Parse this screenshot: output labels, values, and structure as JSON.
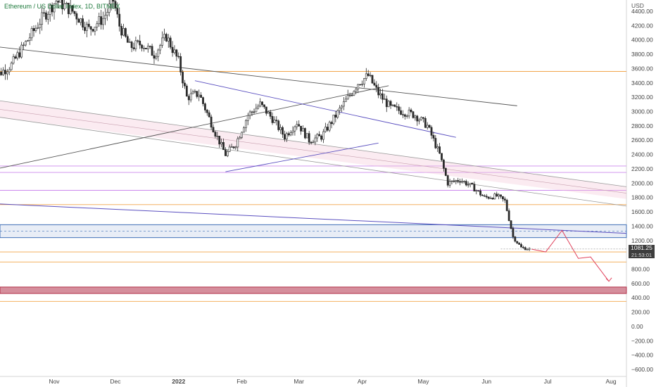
{
  "legend": {
    "title": "Ethereum / US Dollar Index, 1D, BITMEX"
  },
  "axis": {
    "unit": "USD"
  },
  "price_badge": {
    "price": "1081.25",
    "countdown": "21:53:01"
  },
  "colors": {
    "candle_body": "#2b2b2b",
    "candle_hollow": "#ffffff",
    "orange_level": "#f2a54a",
    "purple_level": "#cc88ee",
    "blue_zone": "#3f6fb5",
    "red_zone": "#b2324b",
    "projection": "#e0405a",
    "trend_dark": "#555555",
    "trend_purple": "#5a4fc0"
  },
  "chart_data": {
    "type": "candlestick",
    "title": "Ethereum / US Dollar Index, 1D, BITMEX",
    "y_unit": "USD",
    "y_range": [
      -700,
      4600
    ],
    "y_ticks": [
      "4400.00",
      "4200.00",
      "4000.00",
      "3800.00",
      "3600.00",
      "3400.00",
      "3200.00",
      "3000.00",
      "2800.00",
      "2600.00",
      "2400.00",
      "2200.00",
      "2000.00",
      "1800.00",
      "1600.00",
      "1400.00",
      "1200.00",
      "1000.00",
      "800.00",
      "600.00",
      "400.00",
      "200.00",
      "0.00",
      "−200.00",
      "−400.00",
      "−600.00"
    ],
    "y_tick_values": [
      4400,
      4200,
      4000,
      3800,
      3600,
      3400,
      3200,
      3000,
      2800,
      2600,
      2400,
      2200,
      2000,
      1800,
      1600,
      1400,
      1200,
      1000,
      800,
      600,
      400,
      200,
      0,
      -200,
      -400,
      -600
    ],
    "x_labels": [
      "Nov",
      "Dec",
      "2022",
      "Feb",
      "Mar",
      "Apr",
      "May",
      "Jun",
      "Jul",
      "Aug"
    ],
    "x_label_days": [
      31,
      61,
      92,
      123,
      151,
      182,
      212,
      243,
      273,
      304
    ],
    "x_range_days": [
      0,
      320
    ],
    "horizontal_levels": [
      {
        "price": 3560,
        "color": "orange"
      },
      {
        "price": 2240,
        "color": "purple"
      },
      {
        "price": 2150,
        "color": "purple"
      },
      {
        "price": 1900,
        "color": "purple"
      },
      {
        "price": 1700,
        "color": "orange"
      },
      {
        "price": 1040,
        "color": "orange"
      },
      {
        "price": 900,
        "color": "orange"
      },
      {
        "price": 350,
        "color": "orange"
      }
    ],
    "zones": [
      {
        "from": 1240,
        "to": 1420,
        "color": "blue"
      },
      {
        "from": 460,
        "to": 550,
        "color": "red"
      }
    ],
    "candles_keypoints": [
      {
        "day": 0,
        "close": 3450
      },
      {
        "day": 10,
        "close": 3650
      },
      {
        "day": 18,
        "close": 4000
      },
      {
        "day": 25,
        "close": 4300
      },
      {
        "day": 32,
        "close": 4550
      },
      {
        "day": 40,
        "close": 4400
      },
      {
        "day": 48,
        "close": 4150
      },
      {
        "day": 55,
        "close": 4300
      },
      {
        "day": 60,
        "close": 4550
      },
      {
        "day": 63,
        "close": 4200
      },
      {
        "day": 68,
        "close": 3900
      },
      {
        "day": 74,
        "close": 3950
      },
      {
        "day": 80,
        "close": 3800
      },
      {
        "day": 86,
        "close": 4050
      },
      {
        "day": 92,
        "close": 3700
      },
      {
        "day": 96,
        "close": 3200
      },
      {
        "day": 102,
        "close": 3250
      },
      {
        "day": 110,
        "close": 2700
      },
      {
        "day": 115,
        "close": 2400
      },
      {
        "day": 120,
        "close": 2550
      },
      {
        "day": 126,
        "close": 2950
      },
      {
        "day": 132,
        "close": 3100
      },
      {
        "day": 138,
        "close": 2900
      },
      {
        "day": 144,
        "close": 2650
      },
      {
        "day": 150,
        "close": 2850
      },
      {
        "day": 156,
        "close": 2600
      },
      {
        "day": 162,
        "close": 2650
      },
      {
        "day": 168,
        "close": 2900
      },
      {
        "day": 174,
        "close": 3150
      },
      {
        "day": 180,
        "close": 3400
      },
      {
        "day": 185,
        "close": 3500
      },
      {
        "day": 190,
        "close": 3250
      },
      {
        "day": 196,
        "close": 3050
      },
      {
        "day": 202,
        "close": 3000
      },
      {
        "day": 208,
        "close": 2950
      },
      {
        "day": 214,
        "close": 2800
      },
      {
        "day": 220,
        "close": 2400
      },
      {
        "day": 224,
        "close": 2000
      },
      {
        "day": 230,
        "close": 2050
      },
      {
        "day": 236,
        "close": 1950
      },
      {
        "day": 242,
        "close": 1800
      },
      {
        "day": 248,
        "close": 1820
      },
      {
        "day": 252,
        "close": 1750
      },
      {
        "day": 256,
        "close": 1250
      },
      {
        "day": 260,
        "close": 1100
      },
      {
        "day": 264,
        "close": 1081
      }
    ],
    "projection": [
      {
        "day": 265,
        "price": 1080
      },
      {
        "day": 272,
        "price": 1040
      },
      {
        "day": 280,
        "price": 1340
      },
      {
        "day": 288,
        "price": 950
      },
      {
        "day": 294,
        "price": 970
      },
      {
        "day": 303,
        "price": 630
      }
    ]
  }
}
